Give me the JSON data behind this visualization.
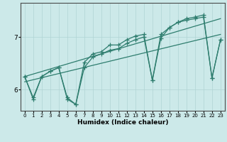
{
  "title": "",
  "xlabel": "Humidex (Indice chaleur)",
  "ylabel": "",
  "bg_color": "#cce9e9",
  "line_color": "#2e7d6e",
  "grid_color": "#b0d4d4",
  "yticks": [
    6,
    7
  ],
  "ylim": [
    5.6,
    7.65
  ],
  "xlim": [
    -0.5,
    23.5
  ],
  "xticks": [
    0,
    1,
    2,
    3,
    4,
    5,
    6,
    7,
    8,
    9,
    10,
    11,
    12,
    13,
    14,
    15,
    16,
    17,
    18,
    19,
    20,
    21,
    22,
    23
  ],
  "series": [
    {
      "x": [
        0,
        1,
        2,
        3,
        4,
        5,
        6,
        7,
        8,
        9,
        10,
        11,
        12,
        13,
        14,
        15,
        16,
        17,
        18,
        19,
        20,
        21,
        22,
        23
      ],
      "y": [
        6.25,
        5.82,
        6.25,
        6.35,
        6.42,
        5.82,
        5.72,
        6.52,
        6.68,
        6.72,
        6.85,
        6.85,
        6.95,
        7.02,
        7.05,
        6.18,
        7.05,
        7.18,
        7.28,
        7.35,
        7.38,
        7.42,
        6.22,
        6.95
      ],
      "has_markers": true
    },
    {
      "x": [
        0,
        1,
        2,
        3,
        4,
        5,
        6,
        7,
        8,
        9,
        10,
        11,
        12,
        13,
        14,
        15,
        16,
        17,
        18,
        19,
        20,
        21,
        22,
        23
      ],
      "y": [
        6.25,
        5.85,
        6.25,
        6.35,
        6.42,
        5.85,
        5.72,
        6.42,
        6.62,
        6.68,
        6.75,
        6.78,
        6.88,
        6.95,
        7.0,
        6.18,
        6.98,
        7.18,
        7.28,
        7.32,
        7.35,
        7.38,
        6.22,
        6.95
      ],
      "has_markers": true
    },
    {
      "x": [
        0,
        23
      ],
      "y": [
        6.25,
        7.35
      ],
      "has_markers": false
    },
    {
      "x": [
        0,
        23
      ],
      "y": [
        6.15,
        7.05
      ],
      "has_markers": false
    }
  ],
  "marker": "+",
  "markersize": 4,
  "linewidth": 0.9
}
